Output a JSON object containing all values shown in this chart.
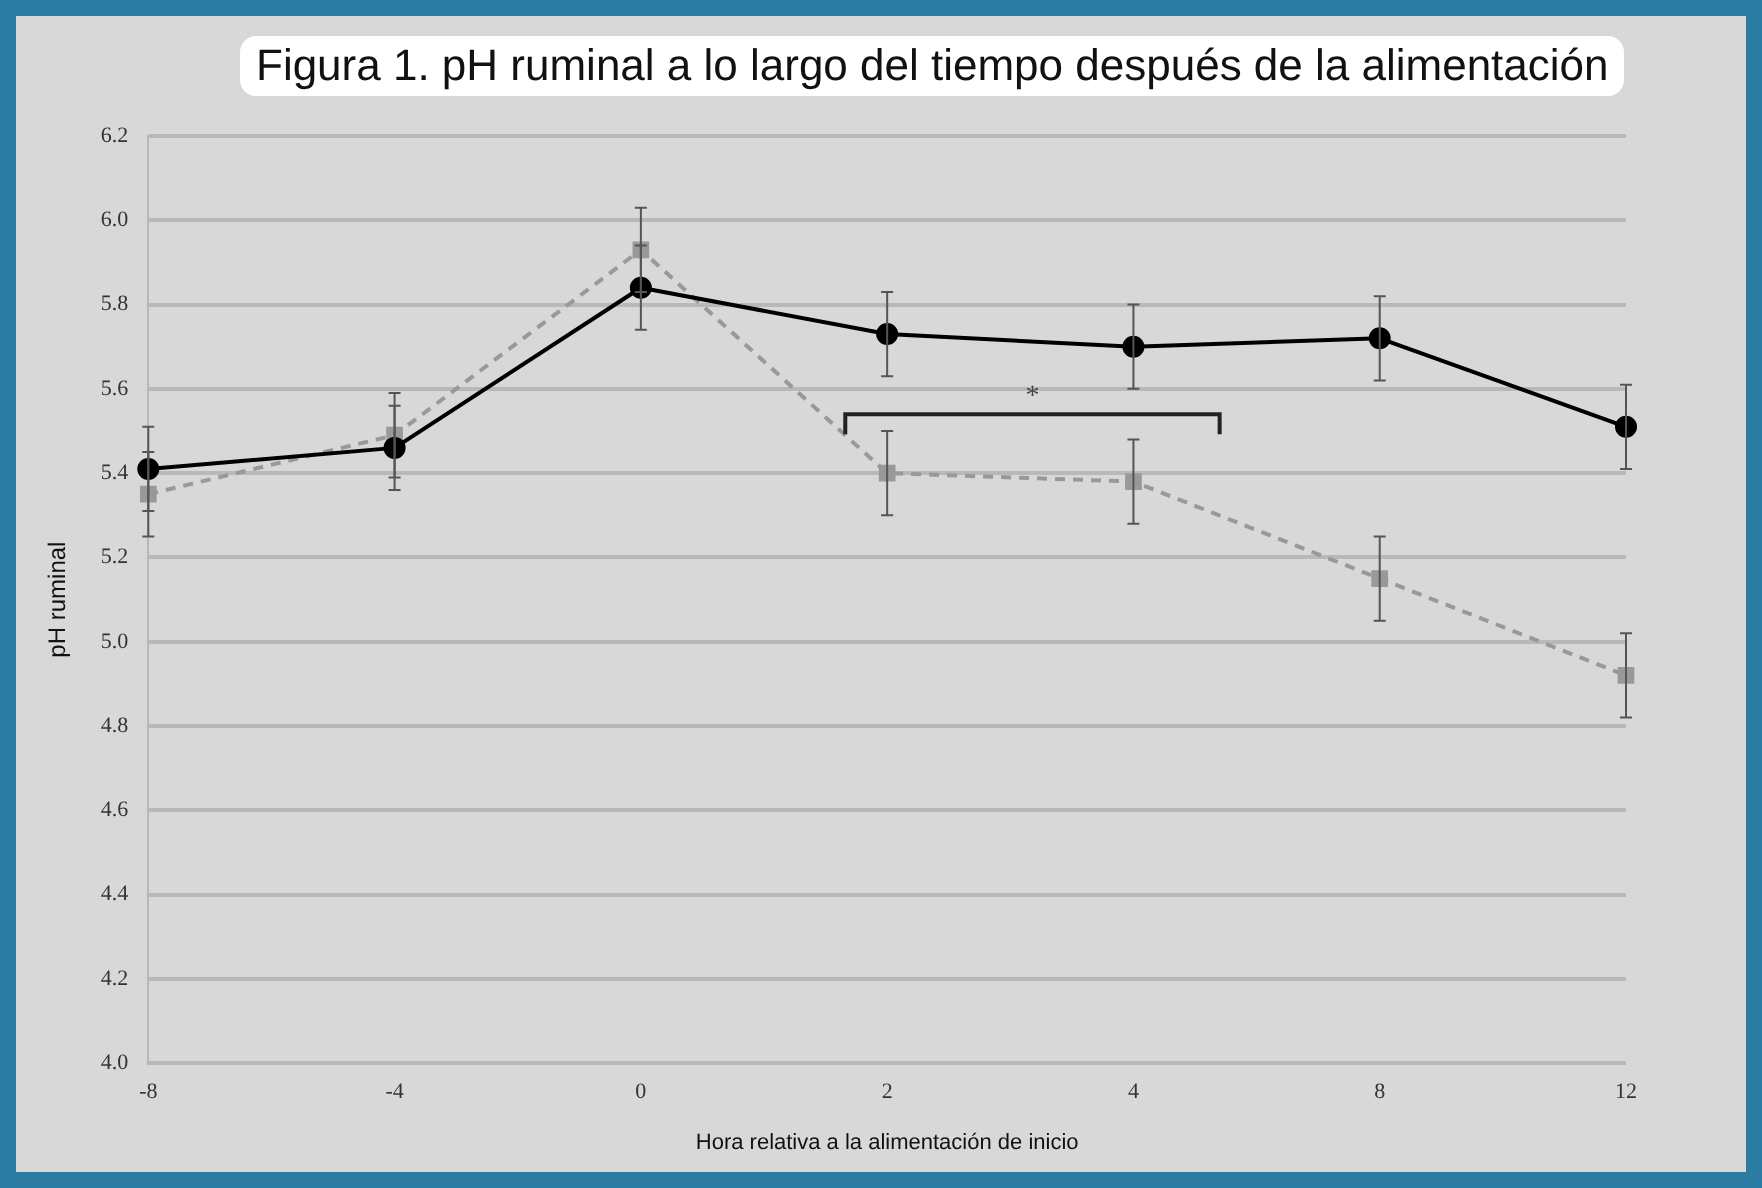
{
  "chart_data": {
    "type": "line",
    "title": "Figura 1. pH ruminal a lo largo del tiempo después de la alimentación",
    "xlabel": "Hora relativa a la alimentación de inicio",
    "ylabel": "pH ruminal",
    "categories": [
      "-8",
      "-4",
      "0",
      "2",
      "4",
      "8",
      "12"
    ],
    "series": [
      {
        "color": "#000000",
        "marker": "circle",
        "line_style": "solid",
        "values": [
          5.41,
          5.46,
          5.84,
          5.73,
          5.7,
          5.72,
          5.51
        ],
        "errors": [
          0.1,
          0.1,
          0.1,
          0.1,
          0.1,
          0.1,
          0.1
        ]
      },
      {
        "color": "#999999",
        "marker": "square",
        "line_style": "dashed",
        "values": [
          5.35,
          5.49,
          5.93,
          5.4,
          5.38,
          5.15,
          4.92
        ],
        "errors": [
          0.1,
          0.1,
          0.1,
          0.1,
          0.1,
          0.1,
          0.1
        ]
      }
    ],
    "ylim": [
      4.0,
      6.2
    ],
    "yticks": [
      {
        "value": 4.0,
        "label": "4.0"
      },
      4.2,
      4.4,
      4.6,
      4.8,
      {
        "value": 5.0,
        "label": "5.0"
      },
      5.2,
      5.4,
      5.6,
      5.8,
      {
        "value": 6.0,
        "label": "6.0"
      },
      6.2
    ],
    "grid": "y",
    "legend": false,
    "annotations": [
      "*"
    ]
  }
}
